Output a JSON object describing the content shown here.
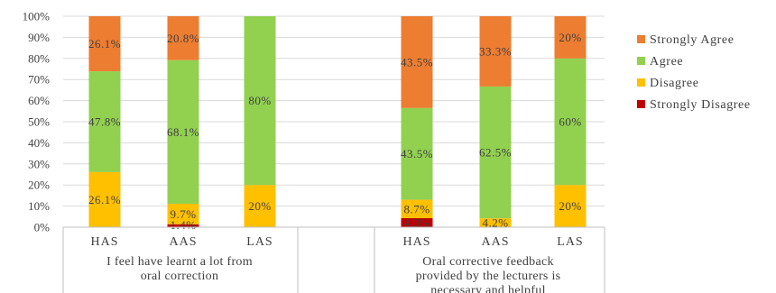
{
  "chart_data": {
    "type": "bar",
    "stacked": true,
    "ylim": [
      0,
      100
    ],
    "yticks": [
      "0%",
      "10%",
      "20%",
      "30%",
      "40%",
      "50%",
      "60%",
      "70%",
      "80%",
      "90%",
      "100%"
    ],
    "grid": true,
    "legend_position": "right",
    "groups": [
      {
        "label": "I feel have learnt a lot from oral correction",
        "categories": [
          "HAS",
          "AAS",
          "LAS"
        ]
      },
      {
        "label": "Oral corrective feedback provided by the lecturers is necessary and helpful",
        "categories": [
          "HAS",
          "AAS",
          "LAS"
        ]
      }
    ],
    "categories": [
      "HAS",
      "AAS",
      "LAS",
      "HAS",
      "AAS",
      "LAS"
    ],
    "series": [
      {
        "name": "Strongly Disagree",
        "color": "#c00000",
        "values": [
          0,
          1.4,
          0,
          4.3,
          0,
          0
        ],
        "labels": [
          "",
          "1.4%",
          "",
          "4.3%",
          "",
          ""
        ]
      },
      {
        "name": "Disagree",
        "color": "#ffc000",
        "values": [
          26.1,
          9.7,
          20,
          8.7,
          4.2,
          20
        ],
        "labels": [
          "26.1%",
          "9.7%",
          "20%",
          "8.7%",
          "4.2%",
          "20%"
        ]
      },
      {
        "name": "Agree",
        "color": "#92d050",
        "values": [
          47.8,
          68.1,
          80,
          43.5,
          62.5,
          60
        ],
        "labels": [
          "47.8%",
          "68.1%",
          "80%",
          "43.5%",
          "62.5%",
          "60%"
        ]
      },
      {
        "name": "Strongly Agree",
        "color": "#ed7d31",
        "values": [
          26.1,
          20.8,
          0,
          43.5,
          33.3,
          20
        ],
        "labels": [
          "26.1%",
          "20.8%",
          "",
          "43.5%",
          "33.3%",
          "20%"
        ]
      }
    ],
    "legend_order": [
      "Strongly Agree",
      "Agree",
      "Disagree",
      "Strongly Disagree"
    ]
  }
}
